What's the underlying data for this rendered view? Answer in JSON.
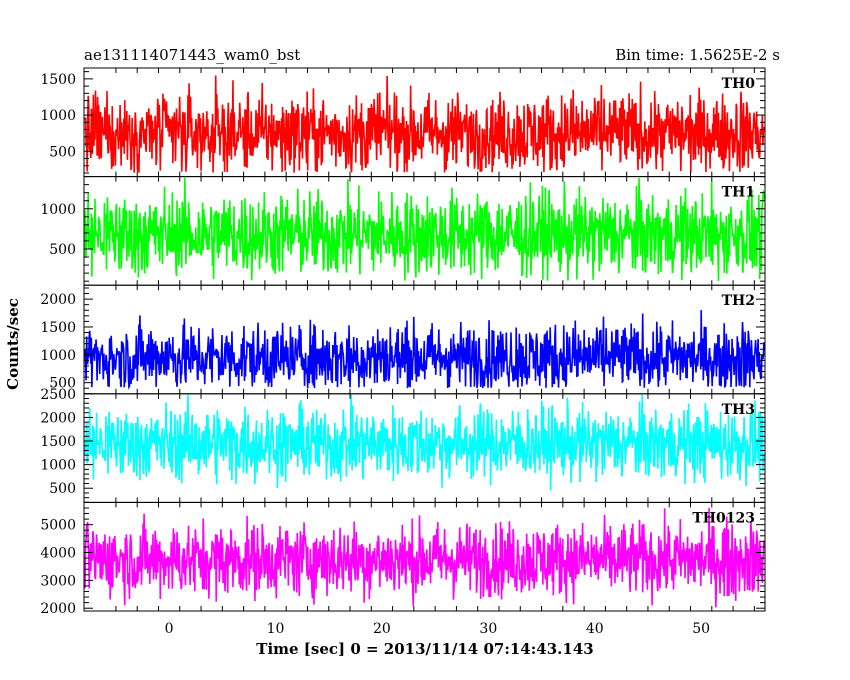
{
  "header": {
    "title_left": "ae131114071443_wam0_bst",
    "title_right": "Bin time: 1.5625E-2 s"
  },
  "chart_data": {
    "type": "line",
    "xlabel": "Time [sec] 0 = 2013/11/14 07:14:43.143",
    "ylabel": "Counts/sec",
    "xlim": [
      -8.0,
      56.0
    ],
    "xticks": [
      0,
      10,
      20,
      30,
      40,
      50
    ],
    "panels": [
      {
        "name": "TH0",
        "color": "#ff0000",
        "ylim": [
          150,
          1650
        ],
        "yticks": [
          500,
          1000,
          1500
        ],
        "mean": 750,
        "spread": 270,
        "min": 200,
        "max": 1650,
        "blip_at": 0.0,
        "blip_value": 0
      },
      {
        "name": "TH1",
        "color": "#00ff00",
        "ylim": [
          50,
          1400
        ],
        "yticks": [
          500,
          1000
        ],
        "mean": 680,
        "spread": 260,
        "min": 100,
        "max": 1400,
        "blip_at": 0.2,
        "blip_value": 430
      },
      {
        "name": "TH2",
        "color": "#0000ff",
        "ylim": [
          300,
          2250
        ],
        "yticks": [
          500,
          1000,
          1500,
          2000
        ],
        "mean": 950,
        "spread": 300,
        "min": 400,
        "max": 2150,
        "blip_at": 0.0,
        "blip_value": 0
      },
      {
        "name": "TH3",
        "color": "#00ffff",
        "ylim": [
          200,
          2500
        ],
        "yticks": [
          500,
          1000,
          1500,
          2000,
          2500
        ],
        "mean": 1450,
        "spread": 380,
        "min": 450,
        "max": 2500,
        "blip_at": 0.0,
        "blip_value": 0
      },
      {
        "name": "TH0123",
        "color": "#ff00ff",
        "ylim": [
          1900,
          5800
        ],
        "yticks": [
          2000,
          3000,
          4000,
          5000
        ],
        "mean": 3750,
        "spread": 650,
        "min": 2000,
        "max": 5600,
        "blip_at": 0.0,
        "blip_value": 0
      }
    ],
    "data_range": [
      -7.9,
      55.9
    ],
    "grid": false,
    "legend": "panel labels top-right"
  }
}
